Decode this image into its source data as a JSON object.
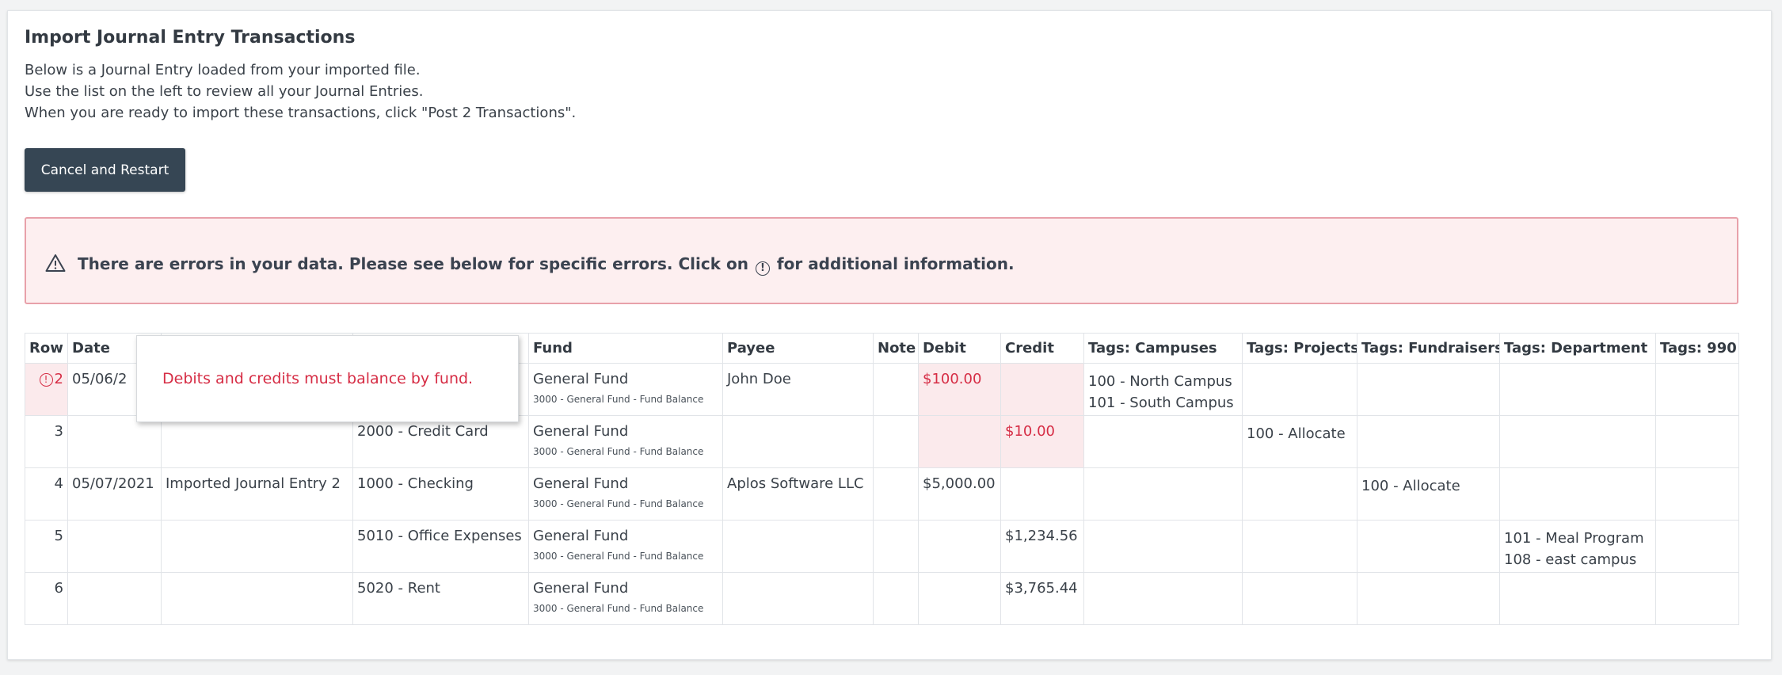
{
  "page": {
    "title": "Import Journal Entry Transactions",
    "description": [
      "Below is a Journal Entry loaded from your imported file.",
      "Use the list on the left to review all your Journal Entries.",
      "When you are ready to import these transactions, click \"Post 2 Transactions\"."
    ],
    "cancel_button": "Cancel and Restart"
  },
  "alert": {
    "msg_before": "There are errors in your data. Please see below for specific errors. Click on",
    "info_glyph": "!",
    "msg_after": "for additional information."
  },
  "tooltip": {
    "text": "Debits and credits must balance by fund."
  },
  "table": {
    "columns": [
      "Row",
      "Date",
      "",
      "",
      "Fund",
      "Payee",
      "Note",
      "Debit",
      "Credit",
      "Tags: Campuses",
      "Tags: Projects",
      "Tags: Fundraisers",
      "Tags: Department",
      "Tags: 990"
    ],
    "rows": [
      {
        "row": "2",
        "error": true,
        "date": "05/06/2",
        "description": "",
        "account": "",
        "fund": "General Fund",
        "fund_sub": "3000 - General Fund - Fund Balance",
        "payee": "John Doe",
        "note": "",
        "debit": "$100.00",
        "credit": "",
        "campuses": [
          "100 - North Campus",
          "101 - South Campus"
        ],
        "projects": [],
        "fundraisers": [],
        "department": [],
        "tags990": []
      },
      {
        "row": "3",
        "error": false,
        "date": "",
        "description": "",
        "account": "2000 - Credit Card",
        "fund": "General Fund",
        "fund_sub": "3000 - General Fund - Fund Balance",
        "payee": "",
        "note": "",
        "debit": "",
        "credit": "$10.00",
        "campuses": [],
        "projects": [
          "100 - Allocate"
        ],
        "fundraisers": [],
        "department": [],
        "tags990": []
      },
      {
        "row": "4",
        "error": false,
        "date": "05/07/2021",
        "description": "Imported Journal Entry 2",
        "account": "1000 - Checking",
        "fund": "General Fund",
        "fund_sub": "3000 - General Fund - Fund Balance",
        "payee": "Aplos Software LLC",
        "note": "",
        "debit": "$5,000.00",
        "credit": "",
        "campuses": [],
        "projects": [],
        "fundraisers": [
          "100 - Allocate"
        ],
        "department": [],
        "tags990": []
      },
      {
        "row": "5",
        "error": false,
        "date": "",
        "description": "",
        "account": "5010 - Office Expenses",
        "fund": "General Fund",
        "fund_sub": "3000 - General Fund - Fund Balance",
        "payee": "",
        "note": "",
        "debit": "",
        "credit": "$1,234.56",
        "campuses": [],
        "projects": [],
        "fundraisers": [],
        "department": [
          "101 - Meal Program",
          "108 - east campus"
        ],
        "tags990": []
      },
      {
        "row": "6",
        "error": false,
        "date": "",
        "description": "",
        "account": "5020 - Rent",
        "fund": "General Fund",
        "fund_sub": "3000 - General Fund - Fund Balance",
        "payee": "",
        "note": "",
        "debit": "",
        "credit": "$3,765.44",
        "campuses": [],
        "projects": [],
        "fundraisers": [],
        "department": [],
        "tags990": []
      }
    ]
  },
  "colors": {
    "button_bg": "#364654",
    "alert_bg": "#fdeff0",
    "alert_border": "#e8a1aa",
    "error_text": "#d62d45",
    "error_cell_bg": "#fbeaec"
  }
}
